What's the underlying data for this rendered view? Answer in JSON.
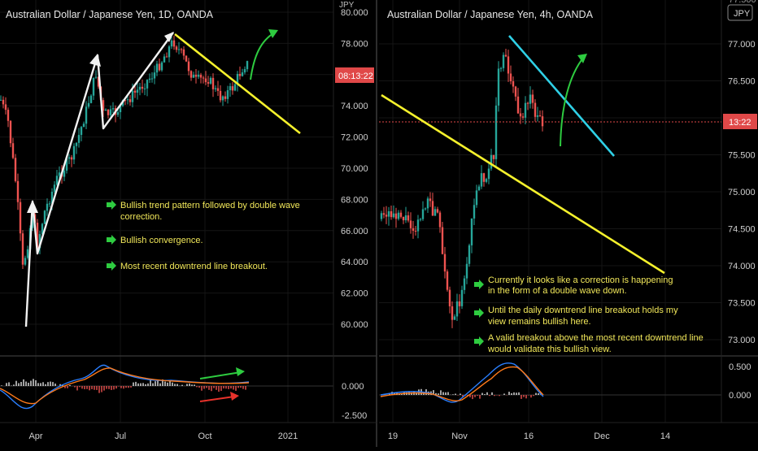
{
  "left_panel": {
    "title": "Australian Dollar / Japanese Yen, 1D, OANDA",
    "currency_badge": "JPY",
    "price_tag": "08:13:22",
    "y_ticks": [
      "80.000",
      "78.000",
      "76.000",
      "74.000",
      "72.000",
      "70.000",
      "68.000",
      "66.000",
      "64.000",
      "62.000",
      "60.000"
    ],
    "x_ticks": [
      "Apr",
      "Jul",
      "Oct",
      "2021"
    ],
    "osc_ticks": [
      "0.000",
      "-2.500"
    ],
    "notes": [
      "Bullish trend pattern followed by double wave",
      "correction.",
      "Bullish convergence.",
      "Most recent downtrend line breakout."
    ]
  },
  "right_panel": {
    "title": "Australian Dollar / Japanese Yen, 4h, OANDA",
    "currency_badge": "JPY",
    "price_tag": "13:22",
    "y_ticks": [
      "77.000",
      "76.500",
      "76.000",
      "75.500",
      "75.000",
      "74.500",
      "74.000",
      "73.500",
      "73.000"
    ],
    "y_tick_top": "77.500",
    "x_ticks": [
      "19",
      "Nov",
      "16",
      "Dec",
      "14"
    ],
    "osc_ticks": [
      "0.500",
      "0.000"
    ],
    "notes": [
      "Currently it looks like a correction is happening",
      "in the form of a double wave down.",
      "Until the daily downtrend line breakout holds my",
      "view remains bullish here.",
      "A valid breakout above the most recent downtrend line",
      "would validate this bullish view."
    ]
  },
  "colors": {
    "background": "#000000",
    "grid": "#151515",
    "up_candle": "#26a69a",
    "down_candle": "#ef5350",
    "yellow_line": "#f5f12c",
    "cyan_line": "#2fd0e6",
    "green_arrow": "#2ecc40",
    "red_arrow": "#e8322b",
    "price_tag_bg": "#e04848",
    "note_text": "#f2e85a",
    "macd_line": "#2a7fff",
    "signal_line": "#ff7a1a"
  }
}
